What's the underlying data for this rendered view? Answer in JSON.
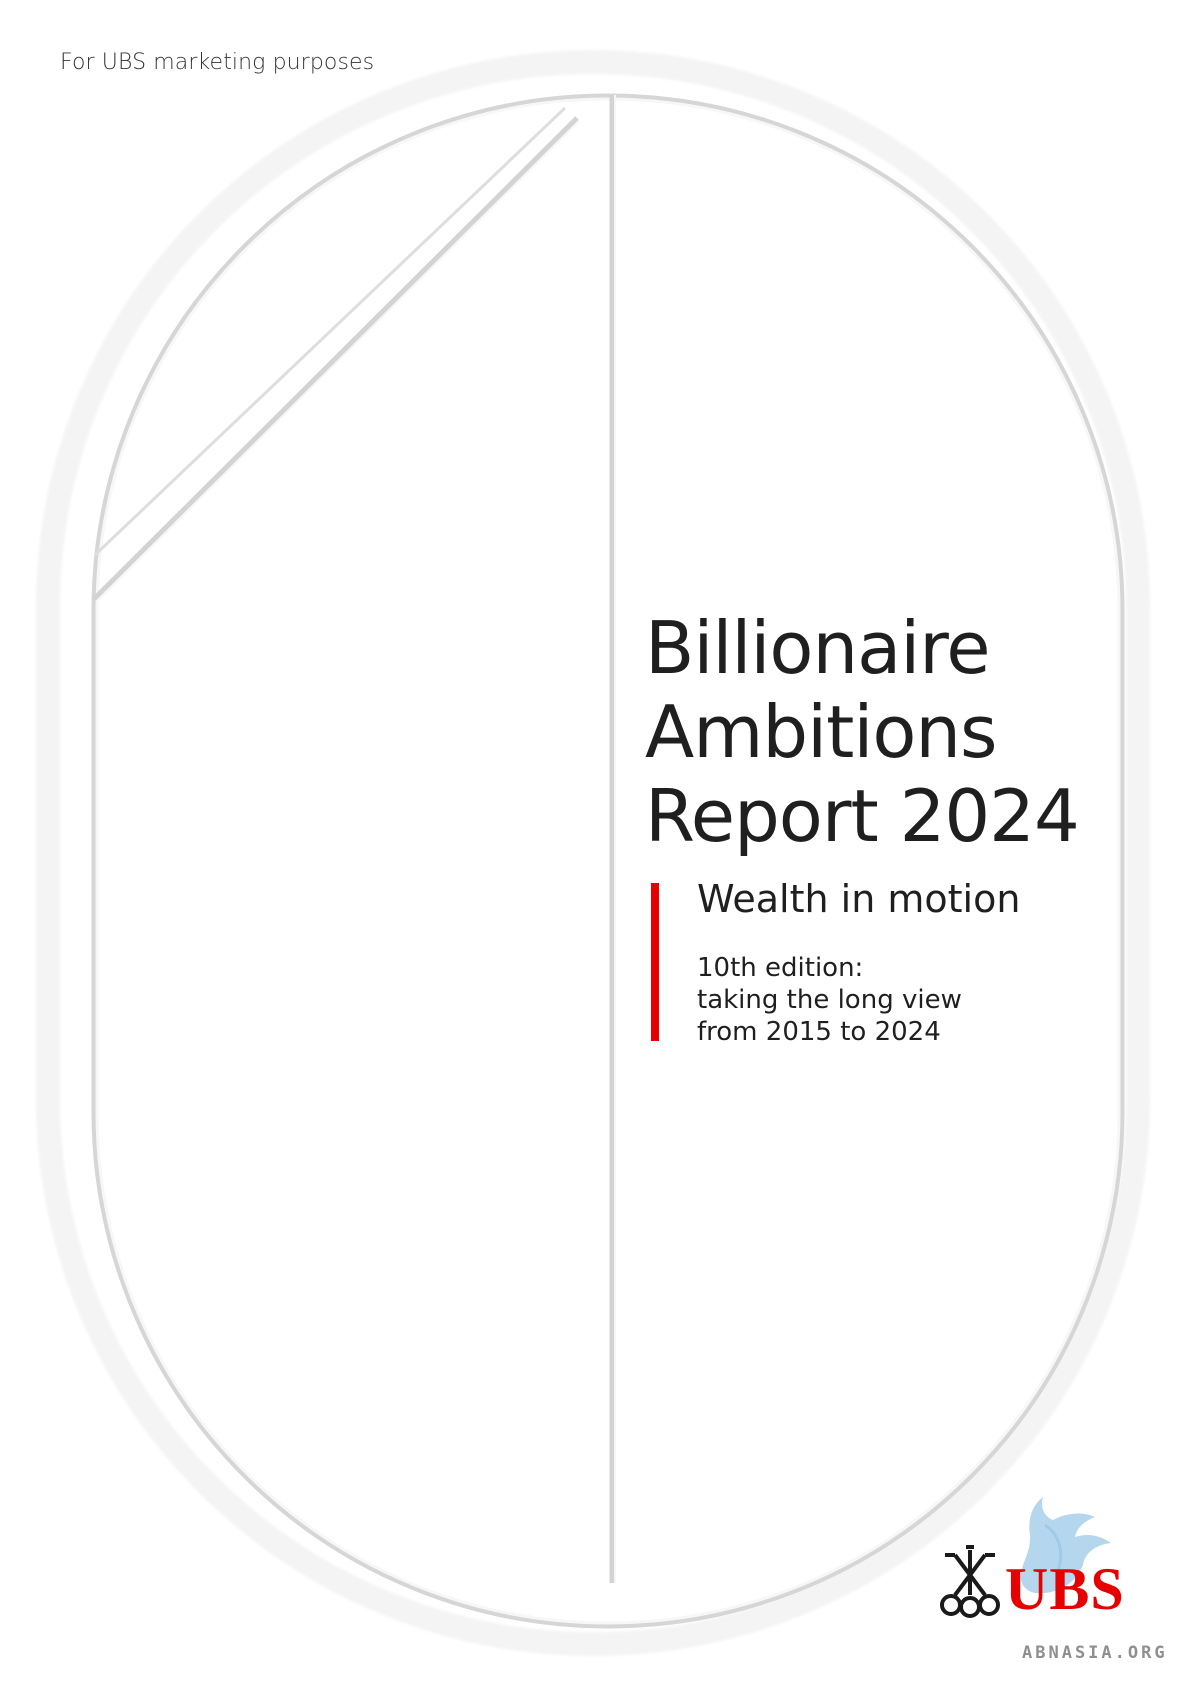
{
  "header": {
    "marketing_note": "For UBS marketing purposes"
  },
  "cover": {
    "title_lines": [
      "Billionaire",
      "Ambitions",
      "Report 2024"
    ],
    "subtitle": "Wealth in motion",
    "edition_lines": [
      "10th edition:",
      "taking the long view",
      "from 2015 to 2024"
    ]
  },
  "logo": {
    "brand_text": "UBS",
    "watermark_text": "ABNASIA.ORG"
  },
  "colors": {
    "accent_red": "#e60000",
    "text": "#1f1f1f",
    "emboss_light": "#f0f0f0",
    "emboss_dark": "#d9d9d9",
    "watermark_blue": "#9fcbe8"
  }
}
